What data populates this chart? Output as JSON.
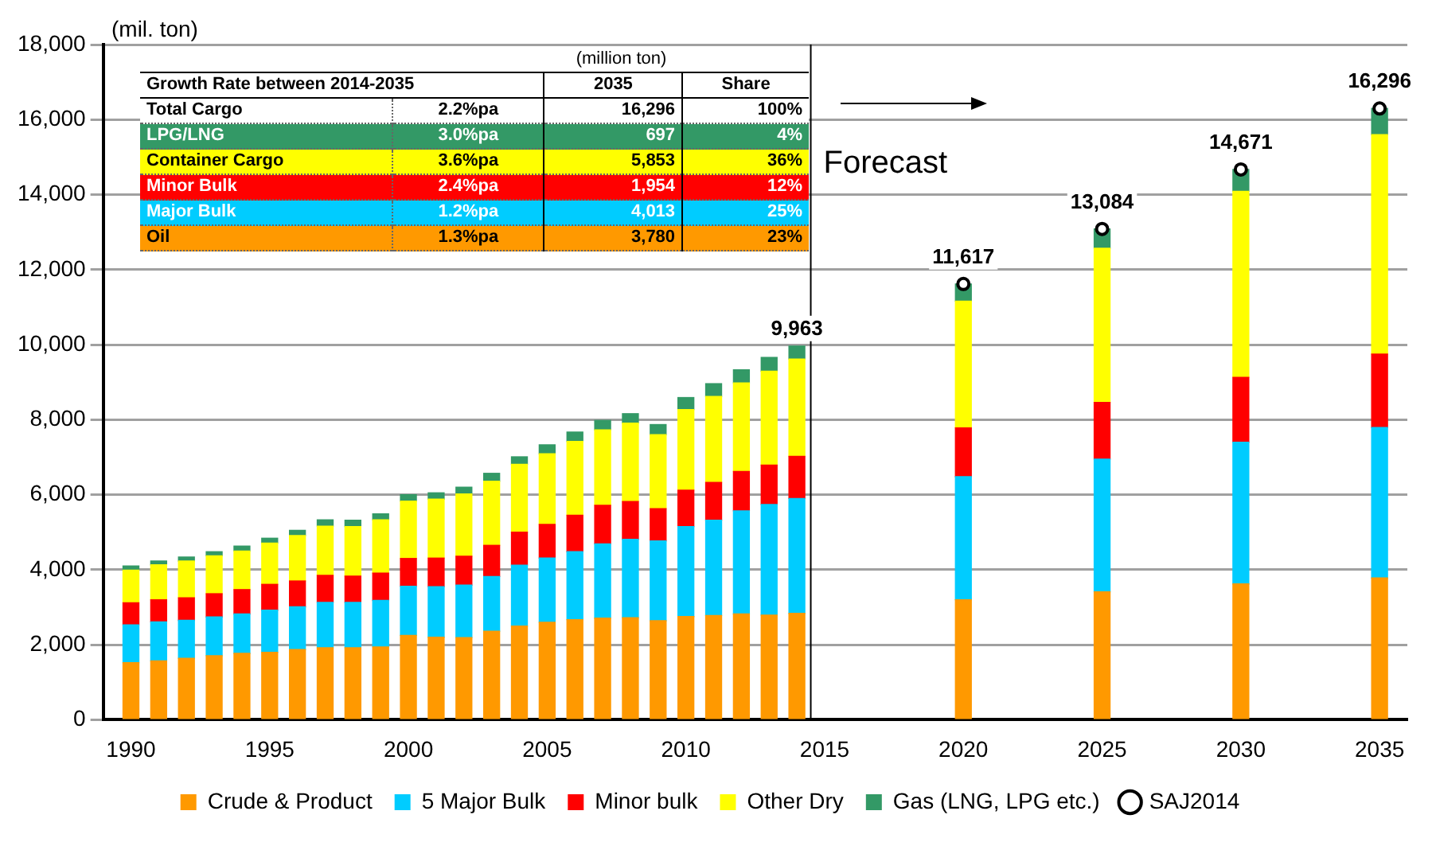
{
  "chart_data": {
    "type": "bar",
    "stacked": true,
    "ylabel": "(mil. ton)",
    "x": [
      1990,
      1991,
      1992,
      1993,
      1994,
      1995,
      1996,
      1997,
      1998,
      1999,
      2000,
      2001,
      2002,
      2003,
      2004,
      2005,
      2006,
      2007,
      2008,
      2009,
      2010,
      2011,
      2012,
      2013,
      2014,
      2020,
      2025,
      2030,
      2035
    ],
    "series": [
      {
        "name": "Crude & Product",
        "color": "#ff9900",
        "values": [
          1520,
          1570,
          1640,
          1710,
          1770,
          1800,
          1870,
          1920,
          1920,
          1940,
          2250,
          2200,
          2190,
          2360,
          2500,
          2600,
          2670,
          2710,
          2720,
          2640,
          2750,
          2780,
          2820,
          2790,
          2836,
          3200,
          3410,
          3620,
          3780
        ]
      },
      {
        "name": "5 Major Bulk",
        "color": "#00ccff",
        "values": [
          1010,
          1040,
          1010,
          1030,
          1050,
          1120,
          1140,
          1210,
          1210,
          1240,
          1310,
          1350,
          1400,
          1460,
          1620,
          1710,
          1810,
          1980,
          2090,
          2130,
          2400,
          2540,
          2750,
          2950,
          3061,
          3280,
          3540,
          3780,
          4013
        ]
      },
      {
        "name": "Minor bulk",
        "color": "#ff0000",
        "values": [
          590,
          590,
          600,
          620,
          650,
          690,
          690,
          720,
          700,
          730,
          740,
          760,
          770,
          830,
          880,
          900,
          970,
          1030,
          1010,
          860,
          970,
          1010,
          1050,
          1050,
          1123,
          1300,
          1510,
          1730,
          1954
        ]
      },
      {
        "name": "Other Dry",
        "color": "#ffff00",
        "values": [
          870,
          930,
          980,
          1010,
          1030,
          1100,
          1210,
          1310,
          1320,
          1420,
          1530,
          1570,
          1660,
          1710,
          1810,
          1880,
          1970,
          2010,
          2090,
          1970,
          2150,
          2290,
          2360,
          2500,
          2597,
          3380,
          4110,
          4960,
          5853
        ]
      },
      {
        "name": "Gas (LNG, LPG etc.)",
        "color": "#339966",
        "values": [
          110,
          100,
          110,
          110,
          130,
          130,
          140,
          170,
          170,
          160,
          170,
          170,
          180,
          210,
          200,
          240,
          250,
          250,
          250,
          270,
          320,
          340,
          350,
          370,
          346,
          457,
          514,
          581,
          697
        ]
      },
      {
        "name": "SAJ2014",
        "type": "scatter",
        "marker": "circle",
        "color": "#000000",
        "x": [
          2020,
          2025,
          2030,
          2035
        ],
        "values": [
          11617,
          13084,
          14671,
          16296
        ]
      }
    ],
    "totals": [
      null,
      null,
      null,
      null,
      null,
      null,
      null,
      null,
      null,
      null,
      null,
      null,
      null,
      null,
      null,
      null,
      null,
      null,
      null,
      null,
      null,
      null,
      null,
      null,
      "9,963",
      "11,617",
      "13,084",
      "14,671",
      "16,296"
    ],
    "xlim": [
      1989,
      2036
    ],
    "xticks": [
      1990,
      1995,
      2000,
      2005,
      2010,
      2015,
      2020,
      2025,
      2030,
      2035
    ],
    "ylim": [
      0,
      18000
    ],
    "yticks": [
      {
        "value": 0,
        "label": "0"
      },
      {
        "value": 2000,
        "label": "2,000"
      },
      {
        "value": 4000,
        "label": "4,000"
      },
      {
        "value": 6000,
        "label": "6,000"
      },
      {
        "value": 8000,
        "label": "8,000"
      },
      {
        "value": 10000,
        "label": "10,000"
      },
      {
        "value": 12000,
        "label": "12,000"
      },
      {
        "value": 14000,
        "label": "14,000"
      },
      {
        "value": 16000,
        "label": "16,000"
      },
      {
        "value": 18000,
        "label": "18,000"
      }
    ],
    "grid": "y",
    "legend": "bottom",
    "ref_lines": [
      {
        "axis": "x",
        "value": 2014.5,
        "label": "Forecast",
        "color": "#000000"
      }
    ],
    "annotations": [
      "Growth Rate between 2014-2035",
      "(million ton)",
      "2035",
      "Share",
      "Total Cargo",
      "2.2%pa",
      "16,296",
      "100%",
      "LPG/LNG",
      "3.0%pa",
      "697",
      "4%",
      "Container Cargo",
      "3.6%pa",
      "5,853",
      "36%",
      "Minor Bulk",
      "2.4%pa",
      "1,954",
      "12%",
      "Major Bulk",
      "1.2%pa",
      "4,013",
      "25%",
      "Oil",
      "1.3%pa",
      "3,780",
      "23%"
    ]
  }
}
